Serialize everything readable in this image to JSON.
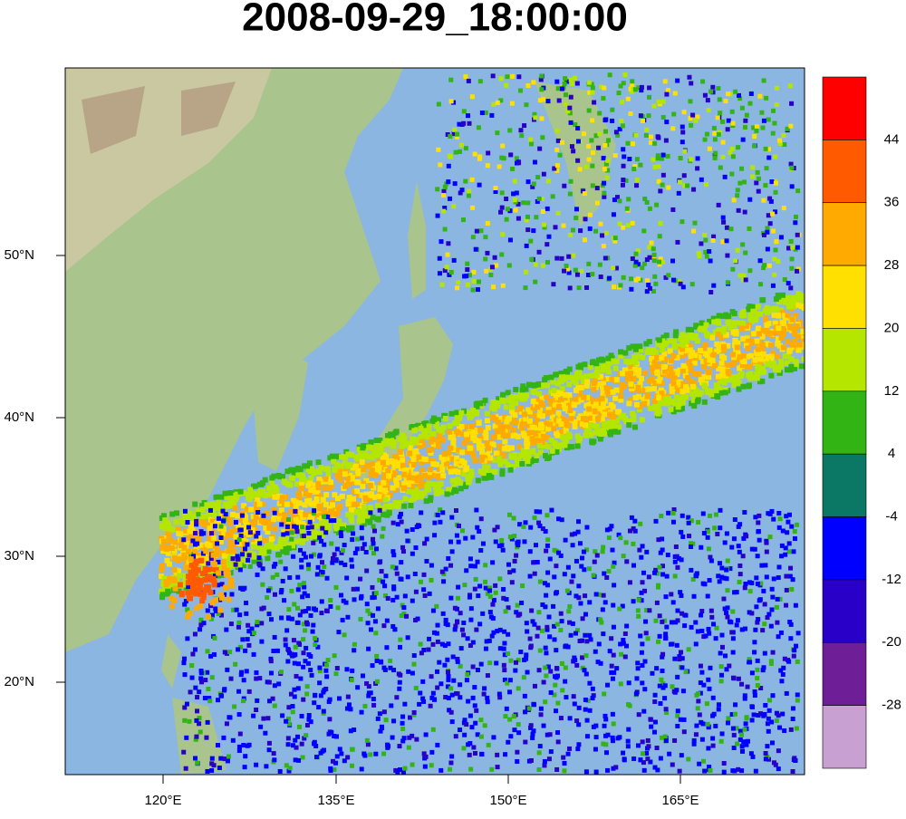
{
  "title": "2008-09-29_18:00:00",
  "map": {
    "lon_labels": [
      "120°E",
      "135°E",
      "150°E",
      "165°E"
    ],
    "lat_labels": [
      "50°N",
      "40°N",
      "30°N",
      "20°N"
    ]
  },
  "colorbar": {
    "levels": [
      44,
      36,
      28,
      20,
      12,
      4,
      -4,
      -12,
      -20,
      -28
    ],
    "colors": [
      "#ff0000",
      "#ff5a00",
      "#ffaa00",
      "#ffe000",
      "#b4e600",
      "#32b414",
      "#0a7864",
      "#0000ff",
      "#2800c8",
      "#6e1e96",
      "#c8a0d2"
    ]
  }
}
